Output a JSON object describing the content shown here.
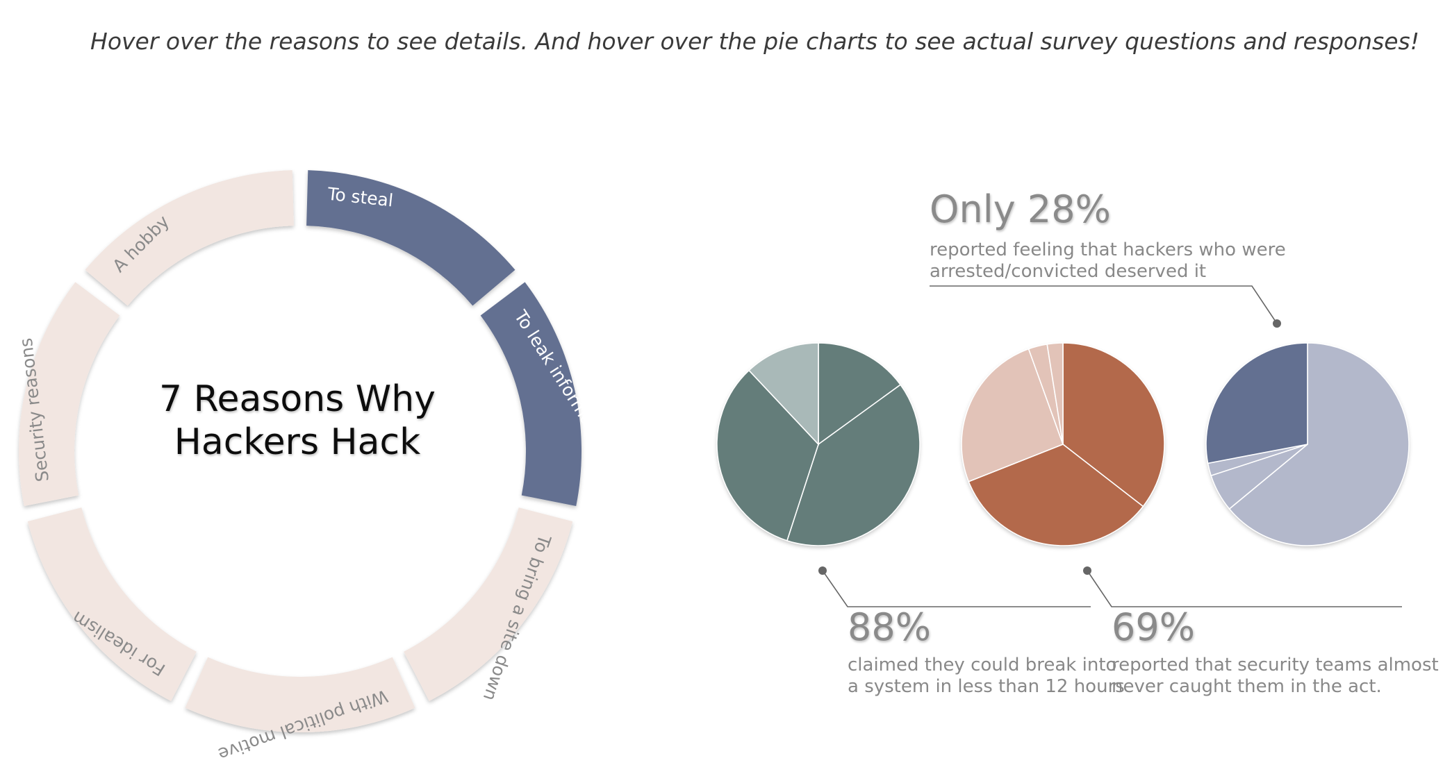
{
  "instruction": "Hover over the reasons to see details. And hover over the pie charts to see actual survey questions and responses!",
  "colors": {
    "ring_inactive": "#f2e6e1",
    "ring_active": "#637091",
    "label_inactive": "#8a8a8a",
    "label_active": "#ffffff",
    "title": "#111111",
    "annotation": "#888888",
    "leader": "#666666"
  },
  "chart_data": [
    {
      "type": "donut",
      "title_lines": [
        "7 Reasons Why",
        "Hackers Hack"
      ],
      "segments": [
        {
          "label": "To steal",
          "active": true
        },
        {
          "label": "To leak information",
          "active": true
        },
        {
          "label": "To bring a site down",
          "active": false
        },
        {
          "label": "With political motive",
          "active": false
        },
        {
          "label": "For idealism",
          "active": false
        },
        {
          "label": "Security reasons",
          "active": false
        },
        {
          "label": "A hobby",
          "active": false
        }
      ]
    },
    {
      "type": "pie",
      "slices": [
        {
          "value": 15,
          "color": "#647d7a"
        },
        {
          "value": 40,
          "color": "#647d7a"
        },
        {
          "value": 33,
          "color": "#647d7a"
        },
        {
          "value": 12,
          "color": "#a9b9b8"
        }
      ],
      "annotation": {
        "big": "88%",
        "lines": [
          "claimed they could break into",
          "a system in less than 12 hours"
        ]
      }
    },
    {
      "type": "pie",
      "slices": [
        {
          "value": 35.5,
          "color": "#b3694b"
        },
        {
          "value": 33.5,
          "color": "#b3694b"
        },
        {
          "value": 25.5,
          "color": "#e2c3b8"
        },
        {
          "value": 3.0,
          "color": "#e2c3b8"
        },
        {
          "value": 2.5,
          "color": "#e2c3b8"
        }
      ],
      "annotation": {
        "big": "69%",
        "lines": [
          "reported that security teams almost",
          "never caught them in the act."
        ]
      }
    },
    {
      "type": "pie",
      "slices": [
        {
          "value": 64,
          "color": "#b3b8cb"
        },
        {
          "value": 6,
          "color": "#b3b8cb"
        },
        {
          "value": 2,
          "color": "#b3b8cb"
        },
        {
          "value": 28,
          "color": "#637091"
        }
      ],
      "annotation": {
        "big": "Only 28%",
        "lines": [
          "reported feeling that hackers who were",
          "arrested/convicted deserved it"
        ]
      }
    }
  ]
}
